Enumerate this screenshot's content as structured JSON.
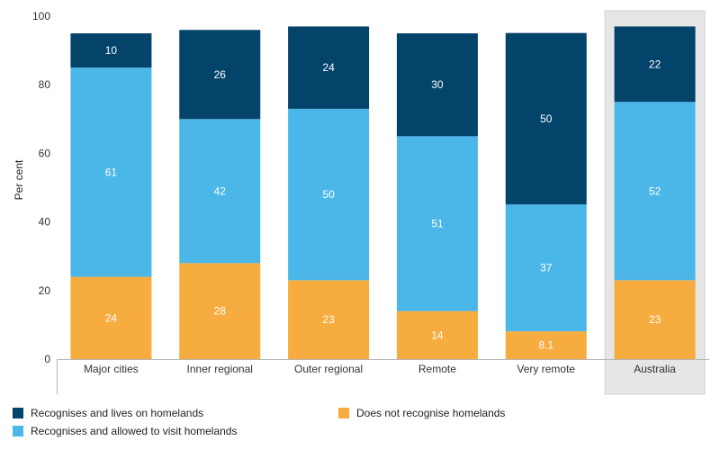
{
  "chart_data": {
    "type": "bar",
    "stacked": true,
    "categories": [
      "Major cities",
      "Inner regional",
      "Outer regional",
      "Remote",
      "Very remote",
      "Australia"
    ],
    "series": [
      {
        "name": "Does not recognise homelands",
        "values": [
          24,
          28,
          23,
          14,
          8.1,
          23
        ],
        "color": "#F7AC3F"
      },
      {
        "name": "Recognises and allowed to visit homelands",
        "values": [
          61,
          42,
          50,
          51,
          37,
          52
        ],
        "color": "#4BB6E8"
      },
      {
        "name": "Recognises and lives on homelands",
        "values": [
          10,
          26,
          24,
          30,
          50,
          22
        ],
        "color": "#04436A"
      }
    ],
    "xlabel": "",
    "ylabel": "Per cent",
    "ylim": [
      0,
      100
    ],
    "yticks": [
      0,
      20,
      40,
      60,
      80,
      100
    ],
    "grid": false,
    "legend_position": "bottom",
    "highlighted_category": "Australia",
    "highlight_color": "#E6E6E6"
  },
  "legend": {
    "items": [
      {
        "label": "Recognises and lives on homelands",
        "color": "#04436A"
      },
      {
        "label": "Does not recognise homelands",
        "color": "#F7AC3F"
      },
      {
        "label": "Recognises and allowed to visit homelands",
        "color": "#4BB6E8"
      }
    ]
  }
}
